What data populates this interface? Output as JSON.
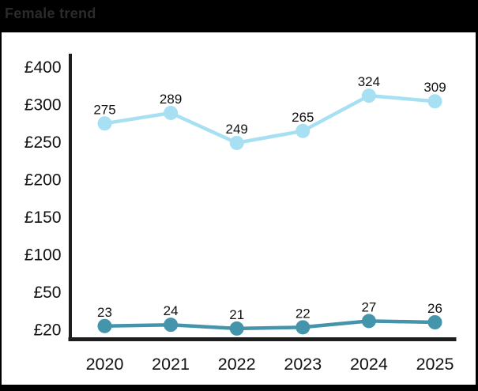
{
  "header": {
    "title": "Female trend"
  },
  "colors": {
    "header_bg": "#000000",
    "title_text": "#2b2b2b",
    "panel_bg": "#ffffff",
    "axis": "#1d1d1d",
    "text": "#111111",
    "series_light_blue": "#a6e0f2",
    "series_teal": "#4494ab"
  },
  "chart_data": {
    "type": "line",
    "title": "Female trend",
    "categories": [
      "2020",
      "2021",
      "2022",
      "2023",
      "2024",
      "2025"
    ],
    "series": [
      {
        "name": "light-blue-line",
        "color": "#a6e0f2",
        "values": [
          275,
          289,
          249,
          265,
          324,
          309
        ]
      },
      {
        "name": "teal-line",
        "color": "#4494ab",
        "values": [
          23,
          24,
          21,
          22,
          27,
          26
        ]
      }
    ],
    "y_ticks": [
      "£400",
      "£300",
      "£250",
      "£200",
      "£150",
      "£100",
      "£50",
      "£20"
    ],
    "y_tick_values": [
      400,
      300,
      250,
      200,
      150,
      100,
      50,
      20
    ],
    "data_labels": true,
    "legend": "none",
    "grid": false,
    "currency_prefix": "£"
  }
}
